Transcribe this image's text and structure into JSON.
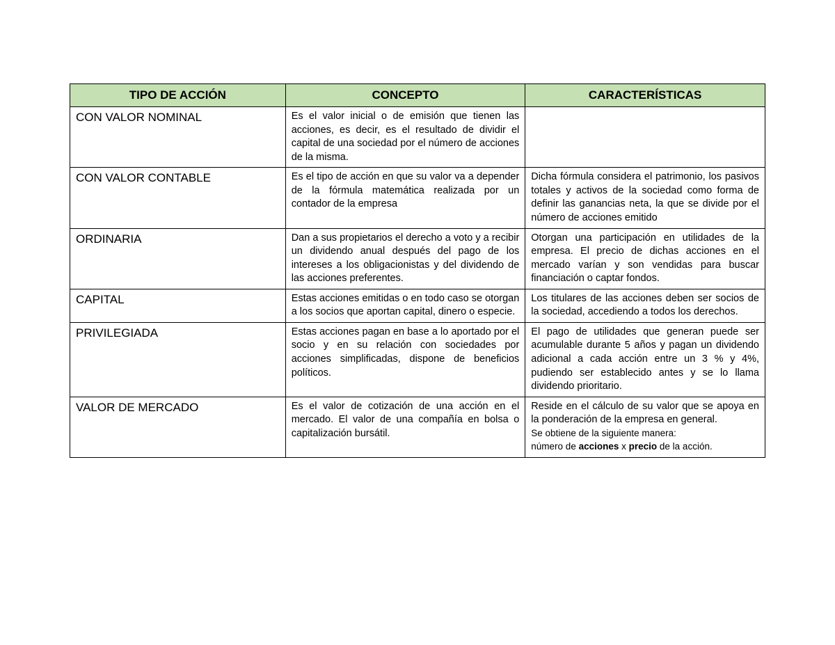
{
  "table": {
    "header_bg": "#c5e0b3",
    "border_color": "#000000",
    "text_color": "#000000",
    "columns": [
      "TIPO DE ACCIÓN",
      "CONCEPTO",
      "CARACTERÍSTICAS"
    ],
    "rows": [
      {
        "tipo": "CON VALOR NOMINAL",
        "concepto": "Es el valor inicial o de emisión que tienen las acciones, es decir, es el resultado de dividir el capital de una sociedad por el número de acciones de la misma.",
        "caracteristicas": ""
      },
      {
        "tipo": "CON VALOR CONTABLE",
        "concepto": " Es el tipo de acción en que su valor va a depender de la fórmula matemática realizada por un contador de la empresa",
        "caracteristicas": "Dicha fórmula considera el patrimonio, los pasivos totales y activos de la sociedad como forma de definir las ganancias neta, la que se divide por el número de acciones emitido"
      },
      {
        "tipo": "ORDINARIA",
        "concepto": "Dan a sus propietarios el derecho a voto y a recibir un dividendo anual después del pago de los intereses a los obligacionistas y del dividendo de las acciones preferentes.",
        "caracteristicas": "Otorgan una participación en utilidades de la empresa. El precio de dichas acciones en el mercado varían y son vendidas para buscar financiación o captar fondos."
      },
      {
        "tipo": "CAPITAL",
        "concepto": "Estas acciones  emitidas o  en  todo caso se otorgan a los socios que aportan capital, dinero o especie.",
        "caracteristicas": "Los titulares de las acciones deben ser socios de la sociedad, accediendo a todos los derechos."
      },
      {
        "tipo": "PRIVILEGIADA",
        "concepto": "Estas acciones pagan  en base a lo aportado por el socio y en su relación con sociedades por acciones simplificadas, dispone de beneficios políticos.",
        "caracteristicas": "El pago de utilidades que generan puede ser acumulable durante 5 años y pagan un dividendo adicional a cada acción entre un 3 % y 4%, pudiendo ser establecido antes y se lo llama dividendo prioritario."
      },
      {
        "tipo": "VALOR DE MERCADO",
        "concepto": "Es el valor de cotización de una acción en el mercado. El valor de una compañía en bolsa o capitalización bursátil.",
        "caracteristicas_parts": {
          "p1": "Reside en el cálculo de su valor que se apoya en la ponderación de la empresa en general.",
          "p2_prefix": "Se obtiene de la siguiente manera:",
          "p2_text1": "número de ",
          "p2_bold1": "acciones",
          "p2_text2": " x ",
          "p2_bold2": "precio",
          "p2_text3": " de la acción."
        }
      }
    ]
  }
}
